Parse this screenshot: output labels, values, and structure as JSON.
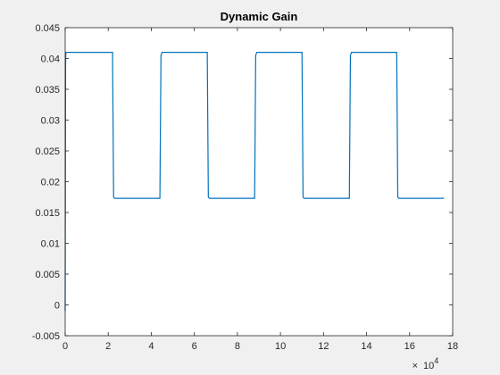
{
  "chart_data": {
    "type": "line",
    "title": "Dynamic Gain",
    "xlabel": "",
    "ylabel": "",
    "xlim": [
      0,
      180000
    ],
    "ylim": [
      -0.005,
      0.045
    ],
    "x_tick_values": [
      0,
      20000,
      40000,
      60000,
      80000,
      100000,
      120000,
      140000,
      160000,
      180000
    ],
    "x_tick_labels": [
      "0",
      "2",
      "4",
      "6",
      "8",
      "10",
      "12",
      "14",
      "16",
      "18"
    ],
    "x_exponent_label": "10",
    "x_exponent_power": "4",
    "y_tick_values": [
      -0.005,
      0,
      0.005,
      0.01,
      0.015,
      0.02,
      0.025,
      0.03,
      0.035,
      0.04,
      0.045
    ],
    "y_tick_labels": [
      "-0.005",
      "0",
      "0.005",
      "0.01",
      "0.015",
      "0.02",
      "0.025",
      "0.03",
      "0.035",
      "0.04",
      "0.045"
    ],
    "grid": false,
    "line_color": "#0072bd",
    "series": [
      {
        "name": "",
        "x": [
          0,
          100,
          200,
          300,
          500,
          1000,
          22000,
          22500,
          23000,
          44000,
          44500,
          45000,
          66000,
          66500,
          67000,
          88000,
          88500,
          89000,
          110000,
          110500,
          111000,
          132000,
          132500,
          133000,
          154000,
          154500,
          155000,
          176000
        ],
        "y": [
          -0.001,
          0.02,
          0.039,
          0.041,
          0.041,
          0.041,
          0.041,
          0.0175,
          0.0173,
          0.0173,
          0.0405,
          0.041,
          0.041,
          0.0175,
          0.0173,
          0.0173,
          0.0405,
          0.041,
          0.041,
          0.0175,
          0.0173,
          0.0173,
          0.0405,
          0.041,
          0.041,
          0.0175,
          0.0173,
          0.0173
        ]
      }
    ]
  }
}
